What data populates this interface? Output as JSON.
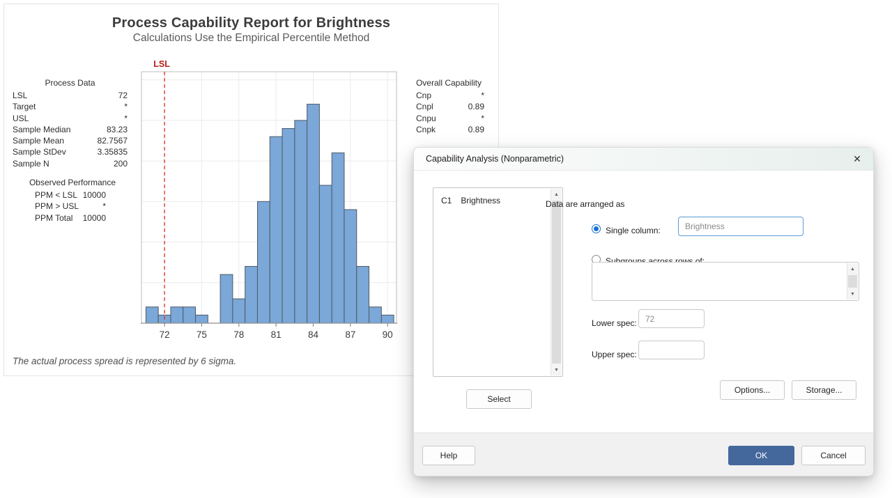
{
  "report": {
    "title": "Process Capability Report for Brightness",
    "subtitle": "Calculations Use the Empirical Percentile Method",
    "footnote": "The actual process spread is represented by 6 sigma.",
    "process_data": {
      "header": "Process Data",
      "rows": [
        [
          "LSL",
          "72"
        ],
        [
          "Target",
          "*"
        ],
        [
          "USL",
          "*"
        ],
        [
          "Sample Median",
          "83.23"
        ],
        [
          "Sample Mean",
          "82.7567"
        ],
        [
          "Sample StDev",
          "3.35835"
        ],
        [
          "Sample N",
          "200"
        ]
      ]
    },
    "observed_performance": {
      "header": "Observed Performance",
      "rows": [
        [
          "PPM < LSL",
          "10000"
        ],
        [
          "PPM > USL",
          "*"
        ],
        [
          "PPM Total",
          "10000"
        ]
      ]
    },
    "overall_capability": {
      "header": "Overall Capability",
      "rows": [
        [
          "Cnp",
          "*"
        ],
        [
          "Cnpl",
          "0.89"
        ],
        [
          "Cnpu",
          "*"
        ],
        [
          "Cnpk",
          "0.89"
        ]
      ]
    }
  },
  "chart_data": {
    "type": "bar",
    "subtype": "histogram",
    "title": "Process Capability Report for Brightness",
    "xlabel": "",
    "ylabel": "",
    "bin_width": 1,
    "bin_centers": [
      71,
      72,
      73,
      74,
      75,
      76,
      77,
      78,
      79,
      80,
      81,
      82,
      83,
      84,
      85,
      86,
      87,
      88,
      89,
      90
    ],
    "counts": [
      2,
      1,
      2,
      2,
      1,
      0,
      6,
      3,
      7,
      15,
      23,
      24,
      25,
      27,
      17,
      21,
      14,
      7,
      2,
      1
    ],
    "x_ticks": [
      72,
      75,
      78,
      81,
      84,
      87,
      90
    ],
    "x_range": [
      70.14,
      90.72
    ],
    "y_range": [
      0,
      31
    ],
    "y_grid_step": 5,
    "grid": true,
    "lsl": {
      "label": "LSL",
      "value": 72
    },
    "colors": {
      "bar_fill": "#7ba7d9",
      "bar_stroke": "#4f5a64",
      "grid": "#ebebeb",
      "plot_border": "#bdbdbd",
      "axis": "#8f8f8f",
      "tick_label": "#3b3b3b",
      "lsl_line": "#e03a2f",
      "lsl_label": "#b52019"
    }
  },
  "dialog": {
    "title": "Capability Analysis (Nonparametric)",
    "columns": [
      {
        "id": "C1",
        "name": "Brightness"
      }
    ],
    "arranged_label": "Data are arranged as",
    "single_column": {
      "label": "Single column:",
      "value": "Brightness",
      "selected": true
    },
    "subgroups": {
      "label": "Subgroups across rows of:",
      "value": "",
      "selected": false
    },
    "lower_spec": {
      "label": "Lower spec:",
      "value": "72"
    },
    "upper_spec": {
      "label": "Upper spec:",
      "value": ""
    },
    "select_button": "Select",
    "options_button": "Options...",
    "storage_button": "Storage...",
    "help_button": "Help",
    "ok_button": "OK",
    "cancel_button": "Cancel",
    "accent_color": "#44689b"
  },
  "icons": {
    "close": "✕",
    "arrow_up": "▲",
    "arrow_down": "▼"
  }
}
